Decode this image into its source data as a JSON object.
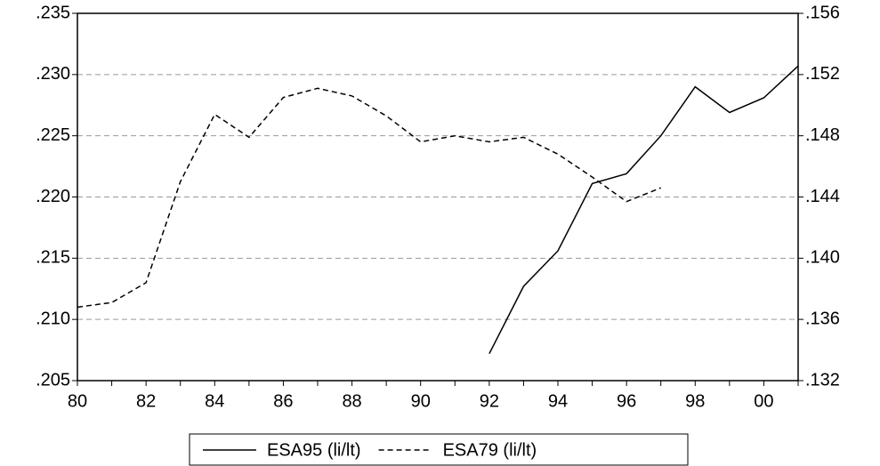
{
  "chart_data": {
    "type": "line",
    "categories": [
      "80",
      null,
      "82",
      null,
      "84",
      null,
      "86",
      null,
      "88",
      null,
      "90",
      null,
      "92",
      null,
      "94",
      null,
      "96",
      null,
      "98",
      null,
      "00",
      null
    ],
    "series": [
      {
        "name": "ESA95 (li/lt)",
        "color": "#000000",
        "dash": "solid",
        "axis": "y",
        "values": [
          null,
          null,
          null,
          null,
          null,
          null,
          null,
          null,
          null,
          null,
          null,
          null,
          0.2072,
          0.2127,
          0.2156,
          0.2211,
          0.2219,
          0.225,
          0.229,
          0.2269,
          0.2281,
          0.2307
        ]
      },
      {
        "name": "ESA79 (li/lt)",
        "color": "#000000",
        "dash": "dashed",
        "axis": "y2",
        "values": [
          0.1368,
          0.1371,
          0.1384,
          0.145,
          0.1494,
          0.1479,
          0.1505,
          0.1511,
          0.1506,
          0.1493,
          0.1476,
          0.148,
          0.1476,
          0.1479,
          0.1468,
          0.1453,
          0.1437,
          0.1446,
          null,
          null,
          null,
          null
        ]
      }
    ],
    "ylim": [
      0.205,
      0.235
    ],
    "yticks": [
      {
        "value": 0.205,
        "label": ".205"
      },
      {
        "value": 0.21,
        "label": ".210"
      },
      {
        "value": 0.215,
        "label": ".215"
      },
      {
        "value": 0.22,
        "label": ".220"
      },
      {
        "value": 0.225,
        "label": ".225"
      },
      {
        "value": 0.23,
        "label": ".230"
      },
      {
        "value": 0.235,
        "label": ".235"
      }
    ],
    "y2lim": [
      0.132,
      0.156
    ],
    "y2ticks": [
      {
        "value": 0.132,
        "label": ".132"
      },
      {
        "value": 0.136,
        "label": ".136"
      },
      {
        "value": 0.14,
        "label": ".140"
      },
      {
        "value": 0.144,
        "label": ".144"
      },
      {
        "value": 0.148,
        "label": ".148"
      },
      {
        "value": 0.152,
        "label": ".152"
      },
      {
        "value": 0.156,
        "label": ".156"
      }
    ],
    "grid": true,
    "legend": "bottom"
  }
}
